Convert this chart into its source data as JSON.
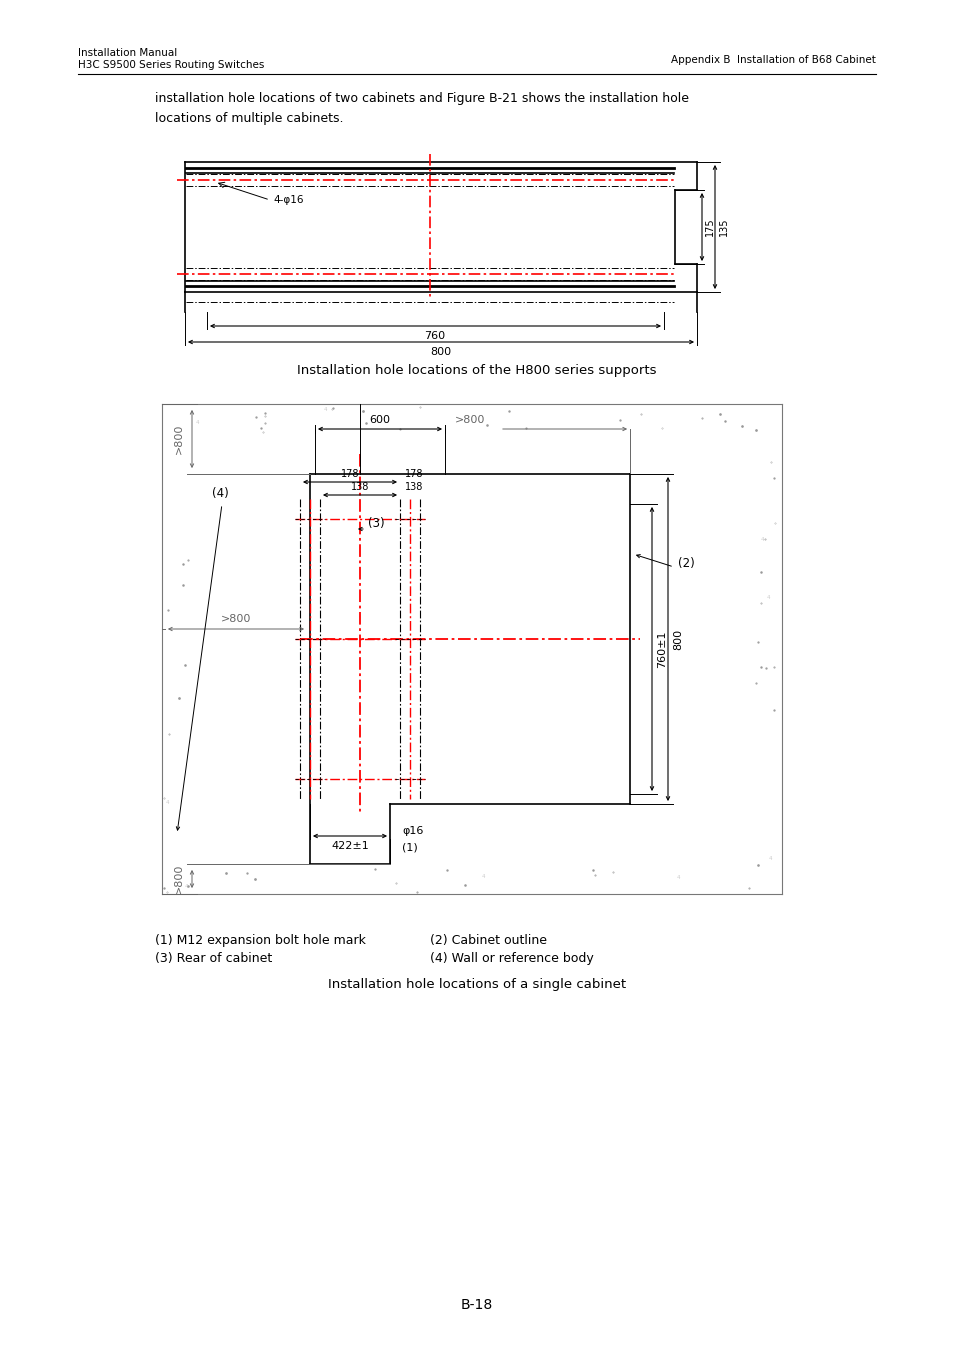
{
  "page_title_left": "Installation Manual\nH3C S9500 Series Routing Switches",
  "page_title_right": "Appendix B  Installation of B68 Cabinet",
  "body_text": "installation hole locations of two cabinets and Figure B-21 shows the installation hole\nlocations of multiple cabinets.",
  "fig1_caption": "Installation hole locations of the H800 series supports",
  "fig2_caption": "Installation hole locations of a single cabinet",
  "legend_line1": "(1) M12 expansion bolt hole mark",
  "legend_line1_right": "(2) Cabinet outline",
  "legend_line2": "(3) Rear of cabinet",
  "legend_line2_right": "(4) Wall or reference body",
  "page_number": "B-18",
  "bg_color": "#ffffff",
  "black": "#000000",
  "red": "#ff0000",
  "dim_gray": "#666666"
}
